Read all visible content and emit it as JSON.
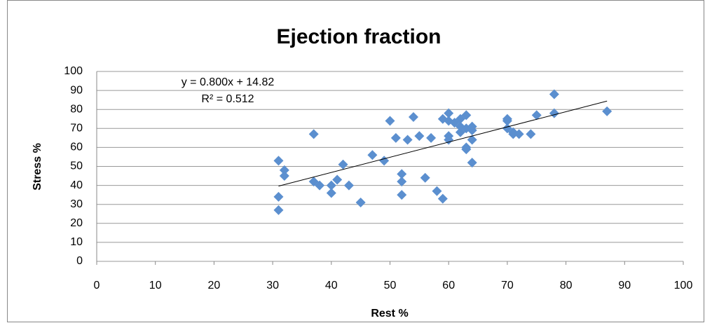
{
  "chart_data": {
    "type": "scatter",
    "title": "Ejection fraction",
    "x_label": "Rest %",
    "y_label": "Stress %",
    "series": [
      {
        "color": "#5b8fcf",
        "x": [
          31,
          31,
          31,
          32,
          32,
          37,
          37,
          38,
          40,
          40,
          41,
          42,
          43,
          45,
          47,
          49,
          50,
          51,
          52,
          52,
          52,
          53,
          54,
          55,
          56,
          57,
          58,
          59,
          59,
          60,
          60,
          60,
          60,
          61,
          62,
          62,
          62,
          63,
          63,
          63,
          63,
          64,
          64,
          64,
          64,
          70,
          70,
          70,
          71,
          71,
          72,
          74,
          75,
          78,
          78,
          87
        ],
        "values": [
          53,
          34,
          27,
          48,
          45,
          67,
          42,
          40,
          40,
          36,
          43,
          51,
          40,
          31,
          56,
          53,
          74,
          65,
          46,
          42,
          35,
          64,
          76,
          66,
          44,
          65,
          37,
          33,
          75,
          78,
          74,
          66,
          64,
          73,
          75,
          68,
          71,
          77,
          70,
          60,
          59,
          71,
          69,
          64,
          52,
          75,
          74,
          70,
          68,
          67,
          67,
          67,
          77,
          88,
          78,
          79
        ]
      }
    ],
    "trendline": {
      "slope": 0.8,
      "intercept": 14.82,
      "label": "y = 0.800x + 14.82",
      "r2_label": "R² = 0.512",
      "color": "#000000"
    },
    "xlim": [
      0,
      100
    ],
    "xticks": [
      0,
      10,
      20,
      30,
      40,
      50,
      60,
      70,
      80,
      90,
      100
    ],
    "ylim": [
      0,
      100
    ],
    "yticks": [
      0,
      10,
      20,
      30,
      40,
      50,
      60,
      70,
      80,
      90,
      100
    ],
    "grid": true
  }
}
